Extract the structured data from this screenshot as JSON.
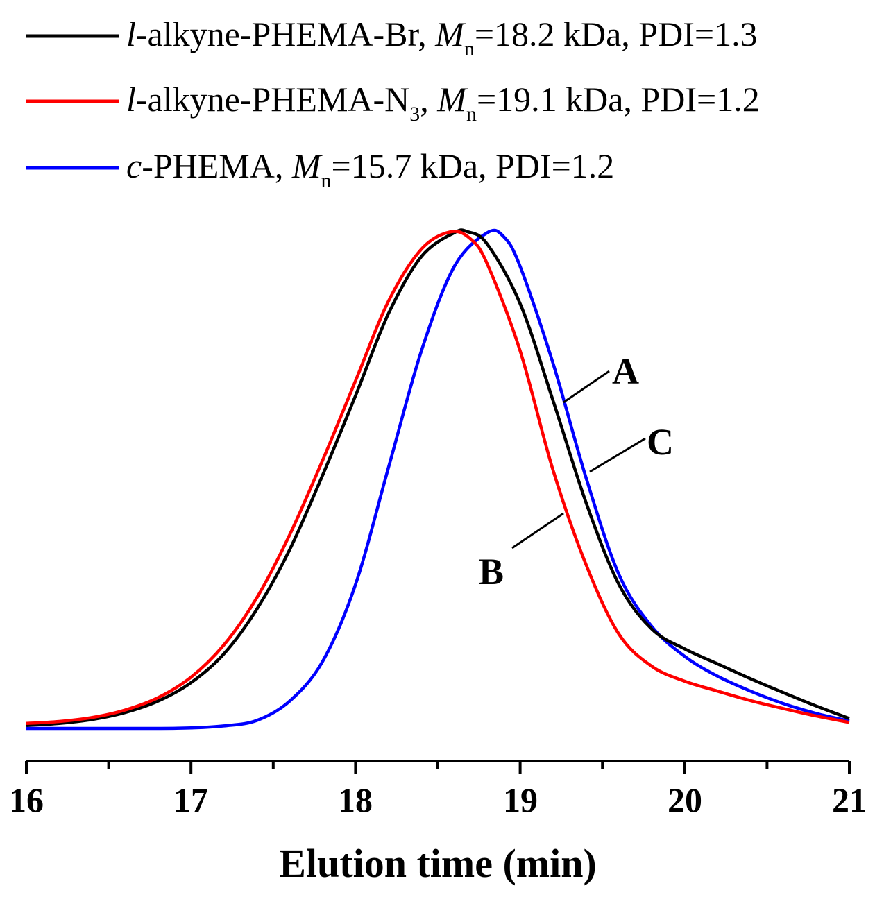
{
  "chart_data": {
    "type": "line",
    "title": "",
    "xlabel": "Elution time (min)",
    "ylabel": "",
    "xlim": [
      16,
      21
    ],
    "ylim": [
      0,
      1
    ],
    "x_ticks": [
      "16",
      "17",
      "18",
      "19",
      "20",
      "21"
    ],
    "legend_position": "top-left",
    "series": [
      {
        "id": "A",
        "label_parts": {
          "prefix": "l",
          "name": "-alkyne-PHEMA-Br, ",
          "m": "M",
          "sub": "n",
          "rest": "=18.2 kDa, PDI=1.3"
        },
        "color": "#000000",
        "curve_label": "A",
        "x": [
          16.0,
          16.2,
          16.4,
          16.6,
          16.8,
          17.0,
          17.2,
          17.4,
          17.6,
          17.8,
          18.0,
          18.2,
          18.4,
          18.6,
          18.68,
          18.8,
          19.0,
          19.2,
          19.4,
          19.6,
          19.8,
          20.0,
          20.2,
          20.4,
          20.6,
          20.8,
          21.0
        ],
        "y": [
          0.006,
          0.01,
          0.018,
          0.032,
          0.055,
          0.092,
          0.15,
          0.24,
          0.36,
          0.51,
          0.67,
          0.835,
          0.95,
          0.998,
          1.0,
          0.975,
          0.855,
          0.66,
          0.455,
          0.29,
          0.2,
          0.16,
          0.13,
          0.1,
          0.072,
          0.045,
          0.02
        ]
      },
      {
        "id": "B",
        "label_parts": {
          "prefix": "l",
          "name": "-alkyne-PHEMA-N",
          "sub1": "3",
          "name2": ", ",
          "m": "M",
          "sub": "n",
          "rest": "=19.1 kDa, PDI=1.2"
        },
        "color": "#ff0000",
        "curve_label": "B",
        "x": [
          16.0,
          16.2,
          16.4,
          16.6,
          16.8,
          17.0,
          17.2,
          17.4,
          17.6,
          17.8,
          18.0,
          18.2,
          18.4,
          18.58,
          18.7,
          18.8,
          19.0,
          19.2,
          19.4,
          19.6,
          19.8,
          20.0,
          20.2,
          20.4,
          20.6,
          20.8,
          21.0
        ],
        "y": [
          0.01,
          0.014,
          0.022,
          0.037,
          0.062,
          0.103,
          0.168,
          0.263,
          0.39,
          0.54,
          0.7,
          0.86,
          0.965,
          1.0,
          0.985,
          0.935,
          0.76,
          0.52,
          0.33,
          0.19,
          0.125,
          0.095,
          0.075,
          0.056,
          0.04,
          0.025,
          0.012
        ]
      },
      {
        "id": "C",
        "label_parts": {
          "prefix": "c",
          "name": "-PHEMA, ",
          "m": "M",
          "sub": "n",
          "rest": "=15.7 kDa, PDI=1.2"
        },
        "color": "#0000ff",
        "curve_label": "C",
        "x": [
          16.0,
          16.4,
          16.8,
          17.0,
          17.2,
          17.4,
          17.6,
          17.8,
          18.0,
          18.2,
          18.4,
          18.6,
          18.8,
          18.9,
          19.0,
          19.2,
          19.4,
          19.6,
          19.8,
          20.0,
          20.2,
          20.4,
          20.6,
          20.8,
          21.0
        ],
        "y": [
          0.0,
          0.0,
          0.0,
          0.001,
          0.005,
          0.016,
          0.055,
          0.135,
          0.29,
          0.525,
          0.76,
          0.93,
          0.998,
          0.99,
          0.93,
          0.735,
          0.505,
          0.31,
          0.205,
          0.145,
          0.105,
          0.075,
          0.05,
          0.03,
          0.015
        ]
      }
    ],
    "annotations": [
      {
        "text": "A",
        "series": "A"
      },
      {
        "text": "B",
        "series": "B"
      },
      {
        "text": "C",
        "series": "C"
      }
    ]
  }
}
